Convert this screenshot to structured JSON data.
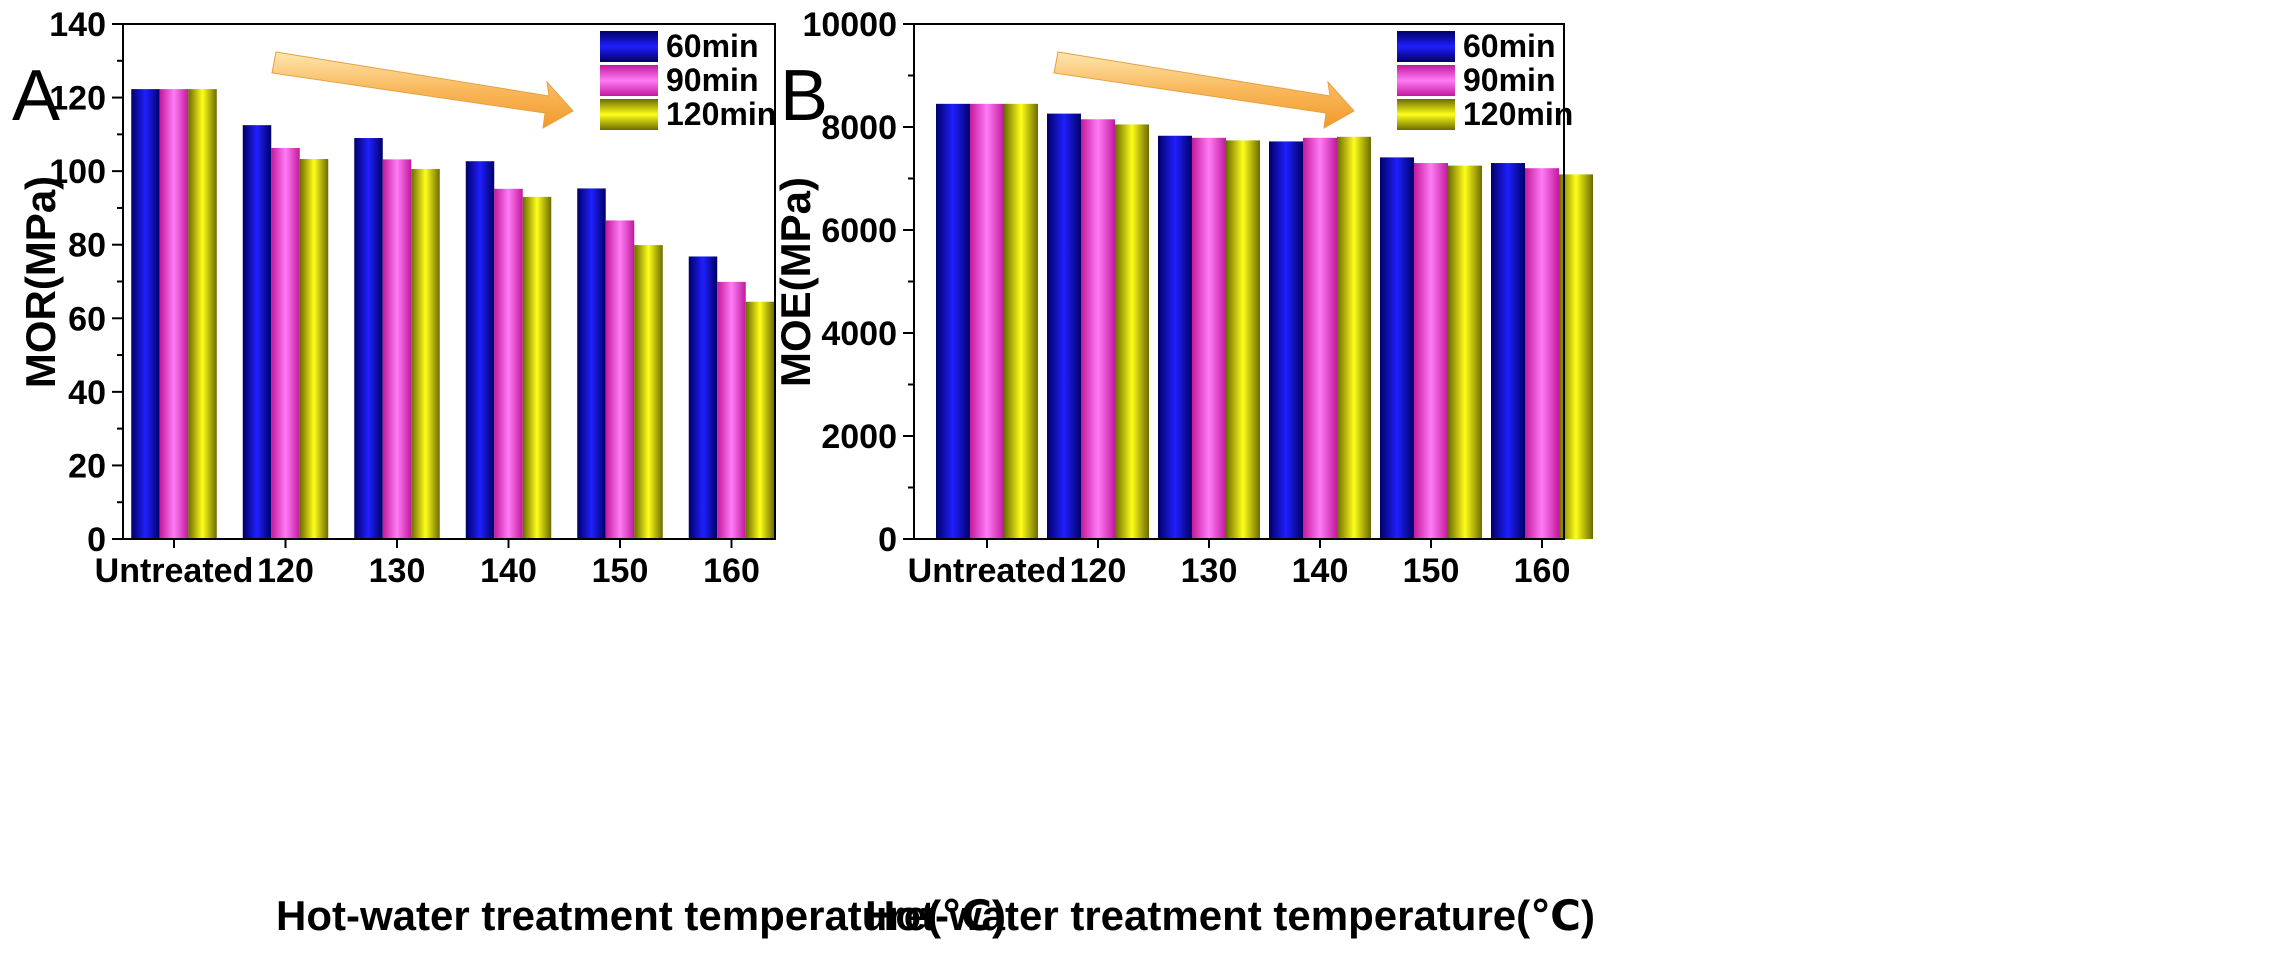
{
  "chart_data": [
    {
      "panel": "A",
      "type": "bar",
      "categories": [
        "Untreated",
        "120",
        "130",
        "140",
        "150",
        "160"
      ],
      "series": [
        {
          "name": "60min",
          "values": [
            122.3,
            112.5,
            109.0,
            102.7,
            95.3,
            76.8
          ],
          "colors": [
            "#000066",
            "#1f1fff",
            "#000066"
          ]
        },
        {
          "name": "90min",
          "values": [
            122.3,
            106.3,
            103.2,
            95.2,
            86.6,
            69.9
          ],
          "colors": [
            "#c2199b",
            "#ff7cf6",
            "#c2199b"
          ]
        },
        {
          "name": "120min",
          "values": [
            122.3,
            103.3,
            100.6,
            93.0,
            79.9,
            64.5
          ],
          "colors": [
            "#6b6b00",
            "#ffff1a",
            "#6b6b00"
          ]
        }
      ],
      "ylabel": "MOR(MPa)",
      "xlabel": "Hot-water treatment temperature(℃)",
      "ylim": [
        0,
        140
      ],
      "yticks": [
        0,
        20,
        40,
        60,
        80,
        100,
        120,
        140
      ],
      "legend": "top-right",
      "annotation": "arrow indicating decreasing trend"
    },
    {
      "panel": "B",
      "type": "bar",
      "categories": [
        "Untreated",
        "120",
        "130",
        "140",
        "150",
        "160"
      ],
      "series": [
        {
          "name": "60min",
          "values": [
            8450,
            8260,
            7830,
            7720,
            7410,
            7300
          ],
          "colors": [
            "#000066",
            "#1f1fff",
            "#000066"
          ]
        },
        {
          "name": "90min",
          "values": [
            8450,
            8150,
            7790,
            7790,
            7300,
            7200
          ],
          "colors": [
            "#c2199b",
            "#ff7cf6",
            "#c2199b"
          ]
        },
        {
          "name": "120min",
          "values": [
            8450,
            8050,
            7740,
            7810,
            7250,
            7080
          ],
          "colors": [
            "#6b6b00",
            "#ffff1a",
            "#6b6b00"
          ]
        }
      ],
      "ylabel": "MOE(MPa)",
      "xlabel": "Hot-water treatment temperature(℃)",
      "ylim": [
        0,
        10000
      ],
      "yticks": [
        0,
        2000,
        4000,
        6000,
        8000,
        10000
      ],
      "legend": "top-right",
      "annotation": "arrow indicating decreasing trend"
    }
  ]
}
